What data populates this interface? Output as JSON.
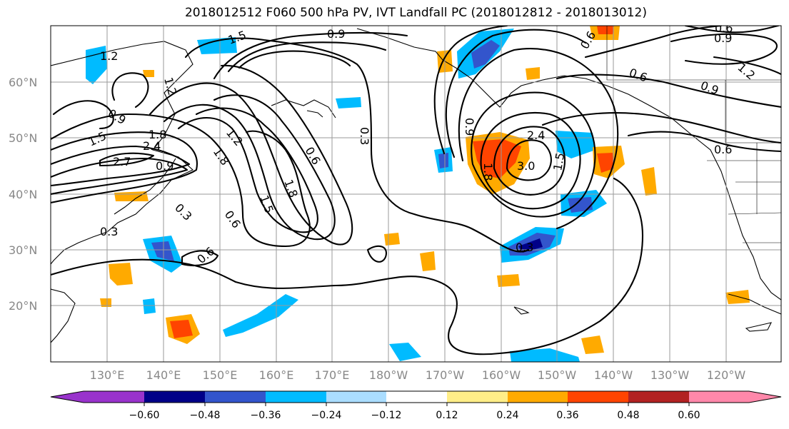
{
  "title": "2018012512 F060 500 hPa PV, IVT Landfall PC (2018012812 - 2018013012)",
  "lat_labels": [
    "60°N",
    "50°N",
    "40°N",
    "30°N",
    "20°N"
  ],
  "lon_labels": [
    "130°E",
    "140°E",
    "150°E",
    "160°E",
    "170°E",
    "180°W",
    "170°W",
    "160°W",
    "150°W",
    "140°W",
    "130°W",
    "120°W"
  ],
  "colorbar": {
    "colors": [
      "#9933cc",
      "#000088",
      "#3355cc",
      "#00bbff",
      "#aaddff",
      "#ffffff",
      "#ffee88",
      "#ffaa00",
      "#ff4400",
      "#b22222",
      "#ff88aa"
    ],
    "ticks": [
      "−0.60",
      "−0.48",
      "−0.36",
      "−0.24",
      "−0.12",
      "0.12",
      "0.24",
      "0.36",
      "0.48",
      "0.60"
    ]
  },
  "contour_labels": [
    "1.5",
    "0.9",
    "1.2",
    "1.2",
    "0.9",
    "1.5",
    "1.8",
    "2.7",
    "2.4",
    "0.9",
    "1.2",
    "1.8",
    "1.5",
    "1.8",
    "0.6",
    "0.3",
    "0.6",
    "0.3",
    "0.3",
    "0.6",
    "0.9",
    "1.8",
    "2.4",
    "3.0",
    "1.5",
    "0.6",
    "0.9",
    "0.9",
    "0.6",
    "1.2",
    "0.6",
    "0.6",
    "0.3"
  ]
}
